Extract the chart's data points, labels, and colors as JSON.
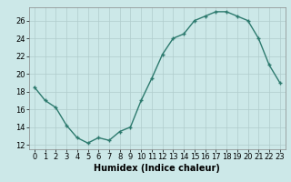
{
  "x": [
    0,
    1,
    2,
    3,
    4,
    5,
    6,
    7,
    8,
    9,
    10,
    11,
    12,
    13,
    14,
    15,
    16,
    17,
    18,
    19,
    20,
    21,
    22,
    23
  ],
  "y": [
    18.5,
    17.0,
    16.2,
    14.2,
    12.8,
    12.2,
    12.8,
    12.5,
    13.5,
    14.0,
    17.0,
    19.5,
    22.2,
    24.0,
    24.5,
    26.0,
    26.5,
    27.0,
    27.0,
    26.5,
    26.0,
    24.0,
    21.0,
    19.0
  ],
  "line_color": "#2d7a6e",
  "marker": "+",
  "markersize": 3,
  "markeredgewidth": 1.0,
  "linewidth": 1.0,
  "bg_color": "#cce8e8",
  "grid_color": "#b0cccc",
  "xlabel": "Humidex (Indice chaleur)",
  "xlim": [
    -0.5,
    23.5
  ],
  "ylim": [
    11.5,
    27.5
  ],
  "yticks": [
    12,
    14,
    16,
    18,
    20,
    22,
    24,
    26
  ],
  "xticks": [
    0,
    1,
    2,
    3,
    4,
    5,
    6,
    7,
    8,
    9,
    10,
    11,
    12,
    13,
    14,
    15,
    16,
    17,
    18,
    19,
    20,
    21,
    22,
    23
  ],
  "tick_fontsize": 6,
  "xlabel_fontsize": 7
}
